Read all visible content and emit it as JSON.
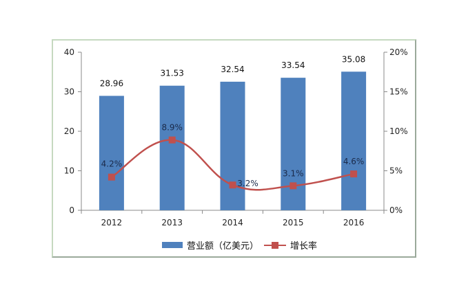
{
  "chart_data": {
    "type": "bar",
    "title": "",
    "categories": [
      "2012",
      "2013",
      "2014",
      "2015",
      "2016"
    ],
    "series": [
      {
        "name": "营业额（亿美元）",
        "type": "bar",
        "axis": "left",
        "color": "#4f81bd",
        "values": [
          28.96,
          31.53,
          32.54,
          33.54,
          35.08
        ],
        "labels": [
          "28.96",
          "31.53",
          "32.54",
          "33.54",
          "35.08"
        ]
      },
      {
        "name": "增长率",
        "type": "line",
        "axis": "right",
        "color": "#c0504d",
        "values": [
          4.2,
          8.9,
          3.2,
          3.1,
          4.6
        ],
        "labels": [
          "4.2%",
          "8.9%",
          "3.2%",
          "3.1%",
          "4.6%"
        ]
      }
    ],
    "ylim": [
      0,
      40
    ],
    "yticks": [
      "0",
      "10",
      "20",
      "30",
      "40"
    ],
    "y2lim": [
      0,
      20
    ],
    "y2ticks": [
      "0%",
      "5%",
      "10%",
      "15%",
      "20%"
    ],
    "xlabel": "",
    "ylabel": "",
    "y2label": "",
    "grid": false,
    "legend_position": "bottom"
  },
  "legend": {
    "bar_label": "营业额（亿美元）",
    "line_label": "增长率"
  }
}
